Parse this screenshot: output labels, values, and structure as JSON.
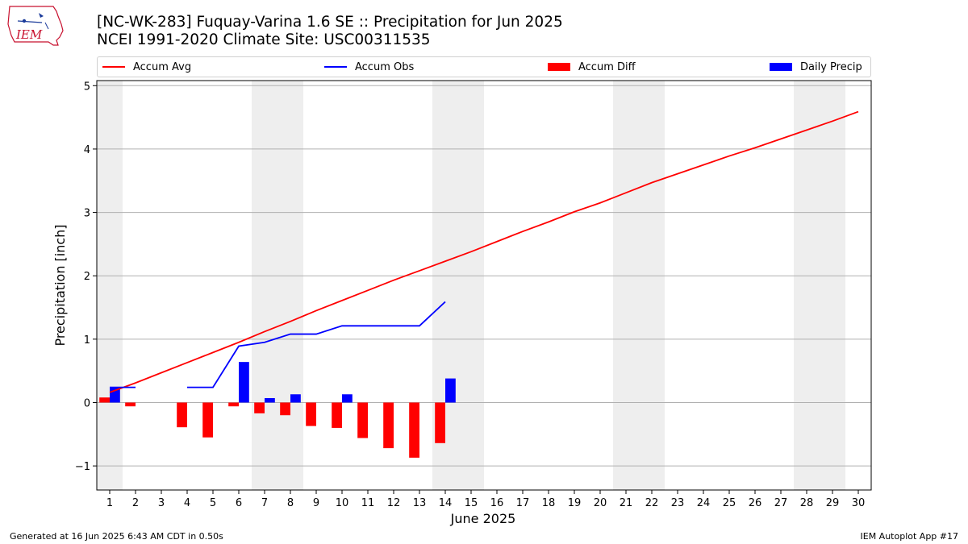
{
  "header": {
    "title_line1": "[NC-WK-283] Fuquay-Varina 1.6 SE :: Precipitation for Jun 2025",
    "title_line2": "NCEI 1991-2020 Climate Site: USC00311535",
    "logo_text": "IEM"
  },
  "legend": {
    "items": [
      {
        "label": "Accum Avg",
        "kind": "line",
        "color": "#ff0000"
      },
      {
        "label": "Accum Obs",
        "kind": "line",
        "color": "#0000ff"
      },
      {
        "label": "Accum Diff",
        "kind": "patch",
        "color": "#ff0000"
      },
      {
        "label": "Daily Precip",
        "kind": "patch",
        "color": "#0000ff"
      }
    ]
  },
  "footer": {
    "generated": "Generated at 16 Jun 2025 6:43 AM CDT in 0.50s",
    "app": "IEM Autoplot App #17"
  },
  "chart_data": {
    "type": "bar",
    "title": "[NC-WK-283] Fuquay-Varina 1.6 SE :: Precipitation for Jun 2025",
    "xlabel": "June 2025",
    "ylabel": "Precipitation [inch]",
    "xlim": [
      0.5,
      30.5
    ],
    "ylim": [
      -1.38,
      5.08
    ],
    "x": [
      1,
      2,
      3,
      4,
      5,
      6,
      7,
      8,
      9,
      10,
      11,
      12,
      13,
      14,
      15,
      16,
      17,
      18,
      19,
      20,
      21,
      22,
      23,
      24,
      25,
      26,
      27,
      28,
      29,
      30
    ],
    "yticks": [
      -1,
      0,
      1,
      2,
      3,
      4,
      5
    ],
    "weekend_shading": [
      [
        0.5,
        1.5
      ],
      [
        6.5,
        8.5
      ],
      [
        13.5,
        15.5
      ],
      [
        20.5,
        22.5
      ],
      [
        27.5,
        29.5
      ]
    ],
    "grid": "horizontal",
    "legend_placement": "top",
    "series": [
      {
        "name": "Accum Avg",
        "kind": "line",
        "color": "#ff0000",
        "x": [
          1,
          2,
          3,
          4,
          5,
          6,
          7,
          8,
          9,
          10,
          11,
          12,
          13,
          14,
          15,
          16,
          17,
          18,
          19,
          20,
          21,
          22,
          23,
          24,
          25,
          26,
          27,
          28,
          29,
          30
        ],
        "values": [
          0.16,
          0.31,
          0.47,
          0.63,
          0.79,
          0.95,
          1.12,
          1.28,
          1.45,
          1.61,
          1.77,
          1.93,
          2.08,
          2.23,
          2.38,
          2.54,
          2.7,
          2.85,
          3.01,
          3.15,
          3.31,
          3.47,
          3.61,
          3.75,
          3.89,
          4.02,
          4.16,
          4.3,
          4.44,
          4.59
        ]
      },
      {
        "name": "Accum Obs",
        "kind": "line",
        "color": "#0000ff",
        "segments": [
          {
            "x": [
              1,
              2
            ],
            "values": [
              0.24,
              0.24
            ]
          },
          {
            "x": [
              4,
              5,
              6,
              7,
              8,
              9,
              10,
              11,
              12,
              13,
              14
            ],
            "values": [
              0.24,
              0.24,
              0.89,
              0.95,
              1.08,
              1.08,
              1.21,
              1.21,
              1.21,
              1.21,
              1.59
            ]
          }
        ]
      },
      {
        "name": "Accum Diff",
        "kind": "bar",
        "color": "#ff0000",
        "x": [
          1,
          2,
          4,
          5,
          6,
          7,
          8,
          9,
          10,
          11,
          12,
          13,
          14
        ],
        "values": [
          0.08,
          -0.06,
          -0.39,
          -0.55,
          -0.06,
          -0.17,
          -0.2,
          -0.37,
          -0.4,
          -0.56,
          -0.72,
          -0.87,
          -0.64
        ]
      },
      {
        "name": "Daily Precip",
        "kind": "bar",
        "color": "#0000ff",
        "x": [
          1,
          6,
          7,
          8,
          10,
          14
        ],
        "values": [
          0.24,
          0.64,
          0.07,
          0.13,
          0.13,
          0.38
        ]
      }
    ]
  }
}
